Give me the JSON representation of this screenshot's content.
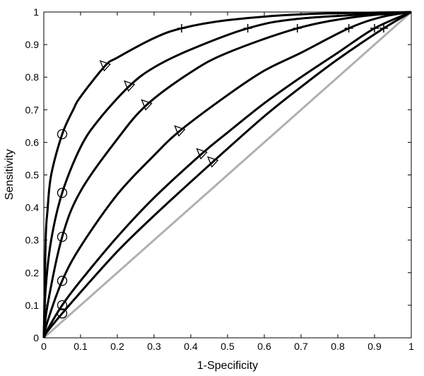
{
  "chart_data": {
    "type": "line",
    "xlabel": "1-Specificity",
    "ylabel": "Sensitivity",
    "xlim": [
      0,
      1
    ],
    "ylim": [
      0,
      1
    ],
    "x_ticks": [
      "0",
      "0.1",
      "0.2",
      "0.3",
      "0.4",
      "0.5",
      "0.6",
      "0.7",
      "0.8",
      "0.9",
      "1"
    ],
    "y_ticks": [
      "0",
      "0.1",
      "0.2",
      "0.3",
      "0.4",
      "0.5",
      "0.6",
      "0.7",
      "0.8",
      "0.9",
      "1"
    ],
    "grid": false,
    "colors": {
      "curve": "#000000",
      "diagonal": "#b0b0b0",
      "background": "#ffffff"
    },
    "diagonal": {
      "x": [
        0,
        1
      ],
      "y": [
        0,
        1
      ]
    },
    "series": [
      {
        "values": [
          [
            0,
            0
          ],
          [
            0.005,
            0.3
          ],
          [
            0.01,
            0.39
          ],
          [
            0.02,
            0.5
          ],
          [
            0.05,
            0.625
          ],
          [
            0.08,
            0.7
          ],
          [
            0.1,
            0.74
          ],
          [
            0.167,
            0.835
          ],
          [
            0.2,
            0.86
          ],
          [
            0.3,
            0.92
          ],
          [
            0.375,
            0.95
          ],
          [
            0.5,
            0.975
          ],
          [
            0.7,
            0.993
          ],
          [
            1,
            1
          ]
        ],
        "markers": {
          "circle": [
            0.05,
            0.625
          ],
          "triangle": [
            0.167,
            0.835
          ],
          "plus": [
            0.375,
            0.95
          ]
        }
      },
      {
        "values": [
          [
            0,
            0
          ],
          [
            0.005,
            0.15
          ],
          [
            0.02,
            0.3
          ],
          [
            0.05,
            0.445
          ],
          [
            0.1,
            0.585
          ],
          [
            0.15,
            0.67
          ],
          [
            0.233,
            0.773
          ],
          [
            0.3,
            0.83
          ],
          [
            0.4,
            0.885
          ],
          [
            0.555,
            0.95
          ],
          [
            0.7,
            0.98
          ],
          [
            1,
            1
          ]
        ],
        "markers": {
          "circle": [
            0.05,
            0.445
          ],
          "triangle": [
            0.233,
            0.773
          ],
          "plus": [
            0.555,
            0.95
          ]
        }
      },
      {
        "values": [
          [
            0,
            0
          ],
          [
            0.01,
            0.1
          ],
          [
            0.05,
            0.31
          ],
          [
            0.1,
            0.45
          ],
          [
            0.2,
            0.61
          ],
          [
            0.28,
            0.715
          ],
          [
            0.4,
            0.815
          ],
          [
            0.5,
            0.875
          ],
          [
            0.69,
            0.95
          ],
          [
            0.85,
            0.985
          ],
          [
            1,
            1
          ]
        ],
        "markers": {
          "circle": [
            0.05,
            0.31
          ],
          "triangle": [
            0.28,
            0.715
          ],
          "plus": [
            0.69,
            0.95
          ]
        }
      },
      {
        "values": [
          [
            0,
            0
          ],
          [
            0.01,
            0.05
          ],
          [
            0.05,
            0.175
          ],
          [
            0.1,
            0.28
          ],
          [
            0.2,
            0.44
          ],
          [
            0.3,
            0.56
          ],
          [
            0.37,
            0.635
          ],
          [
            0.5,
            0.745
          ],
          [
            0.6,
            0.82
          ],
          [
            0.7,
            0.875
          ],
          [
            0.83,
            0.95
          ],
          [
            0.92,
            0.985
          ],
          [
            1,
            1
          ]
        ],
        "markers": {
          "circle": [
            0.05,
            0.175
          ],
          "triangle": [
            0.37,
            0.635
          ],
          "plus": [
            0.83,
            0.95
          ]
        }
      },
      {
        "values": [
          [
            0,
            0
          ],
          [
            0.01,
            0.025
          ],
          [
            0.05,
            0.1
          ],
          [
            0.1,
            0.175
          ],
          [
            0.2,
            0.31
          ],
          [
            0.3,
            0.43
          ],
          [
            0.43,
            0.565
          ],
          [
            0.5,
            0.63
          ],
          [
            0.6,
            0.72
          ],
          [
            0.7,
            0.8
          ],
          [
            0.8,
            0.875
          ],
          [
            0.9,
            0.95
          ],
          [
            1,
            1
          ]
        ],
        "markers": {
          "circle": [
            0.05,
            0.1
          ],
          "triangle": [
            0.43,
            0.565
          ],
          "plus": [
            0.9,
            0.95
          ]
        }
      },
      {
        "values": [
          [
            0,
            0
          ],
          [
            0.01,
            0.02
          ],
          [
            0.05,
            0.075
          ],
          [
            0.1,
            0.14
          ],
          [
            0.2,
            0.265
          ],
          [
            0.3,
            0.375
          ],
          [
            0.46,
            0.54
          ],
          [
            0.6,
            0.68
          ],
          [
            0.7,
            0.77
          ],
          [
            0.8,
            0.855
          ],
          [
            0.925,
            0.95
          ],
          [
            1,
            1
          ]
        ],
        "markers": {
          "circle": [
            0.05,
            0.075
          ],
          "triangle": [
            0.46,
            0.54
          ],
          "plus": [
            0.925,
            0.95
          ]
        }
      }
    ]
  }
}
